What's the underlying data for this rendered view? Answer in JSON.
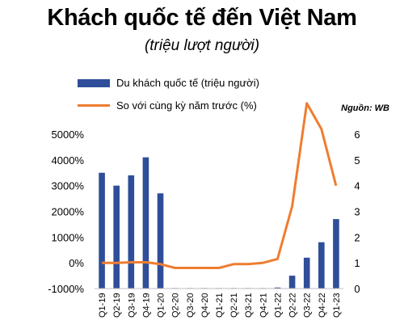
{
  "title": "Khách quốc tế đến Việt Nam",
  "subtitle": "(triệu lượt người)",
  "source": "Nguồn: WB",
  "colors": {
    "bar": "#2f4e99",
    "line": "#ef7d30"
  },
  "chart_data": {
    "type": "bar",
    "categories": [
      "Q1-19",
      "Q2-19",
      "Q3-19",
      "Q4-19",
      "Q1-20",
      "Q2-20",
      "Q3-20",
      "Q4-20",
      "Q1-21",
      "Q2-21",
      "Q3-21",
      "Q4-21",
      "Q1-22",
      "Q2-22",
      "Q3-22",
      "Q4-22",
      "Q1-23"
    ],
    "series": [
      {
        "name": "Du khách  quốc tế (triệu người)",
        "type": "bar",
        "axis": "right",
        "values": [
          4.5,
          4.0,
          4.4,
          5.1,
          3.7,
          0.02,
          0.02,
          0.02,
          0.02,
          0.02,
          0.02,
          0.02,
          0.04,
          0.5,
          1.2,
          1.8,
          2.7
        ]
      },
      {
        "name": "So với cùng kỳ năm trước (%)",
        "type": "line",
        "axis": "left",
        "values": [
          0,
          0,
          20,
          20,
          -50,
          -200,
          -200,
          -200,
          -200,
          -50,
          -50,
          0,
          150,
          2200,
          6200,
          5200,
          3000
        ]
      }
    ],
    "left_axis": {
      "ticks": [
        "-1000%",
        "0%",
        "1000%",
        "2000%",
        "3000%",
        "4000%",
        "5000%"
      ],
      "range": [
        -1000,
        5000
      ]
    },
    "right_axis": {
      "ticks": [
        "0",
        "1",
        "2",
        "3",
        "4",
        "5",
        "6"
      ],
      "range": [
        0,
        6
      ]
    },
    "grid": false,
    "legend": "top-left"
  }
}
